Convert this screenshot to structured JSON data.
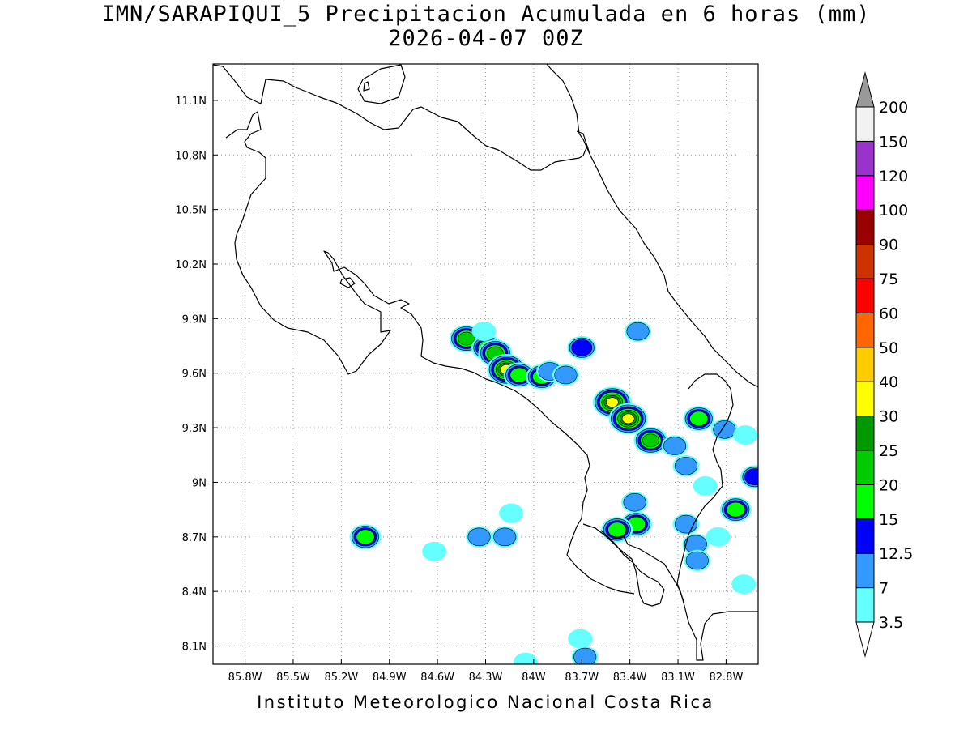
{
  "title": {
    "line1": "IMN/SARAPIQUI_5 Precipitacion Acumulada en 6 horas (mm)",
    "line2": "2026-04-07 00Z"
  },
  "footer": "Instituto Meteorologico Nacional Costa Rica",
  "map": {
    "lon_range": [
      -86.0,
      -82.6
    ],
    "lat_range": [
      8.0,
      11.3
    ],
    "lon_ticks": [
      {
        "value": -85.8,
        "label": "85.8W"
      },
      {
        "value": -85.5,
        "label": "85.5W"
      },
      {
        "value": -85.2,
        "label": "85.2W"
      },
      {
        "value": -84.9,
        "label": "84.9W"
      },
      {
        "value": -84.6,
        "label": "84.6W"
      },
      {
        "value": -84.3,
        "label": "84.3W"
      },
      {
        "value": -84.0,
        "label": "84W"
      },
      {
        "value": -83.7,
        "label": "83.7W"
      },
      {
        "value": -83.4,
        "label": "83.4W"
      },
      {
        "value": -83.1,
        "label": "83.1W"
      },
      {
        "value": -82.8,
        "label": "82.8W"
      }
    ],
    "lat_ticks": [
      {
        "value": 8.1,
        "label": "8.1N"
      },
      {
        "value": 8.4,
        "label": "8.4N"
      },
      {
        "value": 8.7,
        "label": "8.7N"
      },
      {
        "value": 9.0,
        "label": "9N"
      },
      {
        "value": 9.3,
        "label": "9.3N"
      },
      {
        "value": 9.6,
        "label": "9.6N"
      },
      {
        "value": 9.9,
        "label": "9.9N"
      },
      {
        "value": 10.2,
        "label": "10.2N"
      },
      {
        "value": 10.5,
        "label": "10.5N"
      },
      {
        "value": 10.8,
        "label": "10.8N"
      },
      {
        "value": 11.1,
        "label": "11.1N"
      }
    ],
    "grid": "dotted"
  },
  "colorbar": {
    "levels": [
      "3.5",
      "7",
      "12.5",
      "15",
      "20",
      "25",
      "30",
      "40",
      "50",
      "60",
      "75",
      "90",
      "100",
      "120",
      "150",
      "200"
    ],
    "colors": [
      "#66ffff",
      "#3399ff",
      "#0000ff",
      "#00ff00",
      "#00cc00",
      "#009900",
      "#ffff00",
      "#ffcc00",
      "#ff6600",
      "#ff0000",
      "#cc3300",
      "#990000",
      "#ff00ff",
      "#9933cc",
      "#f2f2f2",
      "#999999"
    ]
  },
  "precip_cells": [
    {
      "lon": -84.42,
      "lat": 9.79,
      "mm": 20
    },
    {
      "lon": -84.29,
      "lat": 9.74,
      "mm": 15
    },
    {
      "lon": -84.24,
      "lat": 9.71,
      "mm": 20
    },
    {
      "lon": -84.17,
      "lat": 9.62,
      "mm": 30
    },
    {
      "lon": -84.09,
      "lat": 9.59,
      "mm": 15
    },
    {
      "lon": -83.95,
      "lat": 9.58,
      "mm": 15
    },
    {
      "lon": -83.9,
      "lat": 9.61,
      "mm": 7
    },
    {
      "lon": -83.8,
      "lat": 9.59,
      "mm": 7
    },
    {
      "lon": -83.7,
      "lat": 9.74,
      "mm": 12.5
    },
    {
      "lon": -83.51,
      "lat": 9.44,
      "mm": 30
    },
    {
      "lon": -83.41,
      "lat": 9.35,
      "mm": 30
    },
    {
      "lon": -83.27,
      "lat": 9.23,
      "mm": 20
    },
    {
      "lon": -83.12,
      "lat": 9.2,
      "mm": 7
    },
    {
      "lon": -82.97,
      "lat": 9.35,
      "mm": 15
    },
    {
      "lon": -82.81,
      "lat": 9.29,
      "mm": 7
    },
    {
      "lon": -82.68,
      "lat": 9.26,
      "mm": 3.5
    },
    {
      "lon": -82.62,
      "lat": 9.03,
      "mm": 12.5
    },
    {
      "lon": -82.74,
      "lat": 8.85,
      "mm": 15
    },
    {
      "lon": -83.36,
      "lat": 8.77,
      "mm": 15
    },
    {
      "lon": -83.48,
      "lat": 8.74,
      "mm": 15
    },
    {
      "lon": -83.37,
      "lat": 8.89,
      "mm": 7
    },
    {
      "lon": -83.05,
      "lat": 8.77,
      "mm": 7
    },
    {
      "lon": -82.99,
      "lat": 8.66,
      "mm": 7
    },
    {
      "lon": -82.98,
      "lat": 8.57,
      "mm": 7
    },
    {
      "lon": -82.69,
      "lat": 8.44,
      "mm": 3.5
    },
    {
      "lon": -82.85,
      "lat": 8.7,
      "mm": 3.5
    },
    {
      "lon": -84.18,
      "lat": 8.7,
      "mm": 7
    },
    {
      "lon": -84.34,
      "lat": 8.7,
      "mm": 7
    },
    {
      "lon": -84.14,
      "lat": 8.83,
      "mm": 3.5
    },
    {
      "lon": -85.05,
      "lat": 8.7,
      "mm": 15
    },
    {
      "lon": -84.62,
      "lat": 8.62,
      "mm": 3.5
    },
    {
      "lon": -84.31,
      "lat": 9.83,
      "mm": 3.5
    },
    {
      "lon": -83.71,
      "lat": 8.14,
      "mm": 3.5
    },
    {
      "lon": -83.68,
      "lat": 8.04,
      "mm": 7
    },
    {
      "lon": -84.05,
      "lat": 8.01,
      "mm": 3.5
    },
    {
      "lon": -83.05,
      "lat": 9.09,
      "mm": 7
    },
    {
      "lon": -82.93,
      "lat": 8.98,
      "mm": 3.5
    },
    {
      "lon": -83.35,
      "lat": 9.83,
      "mm": 7
    }
  ]
}
